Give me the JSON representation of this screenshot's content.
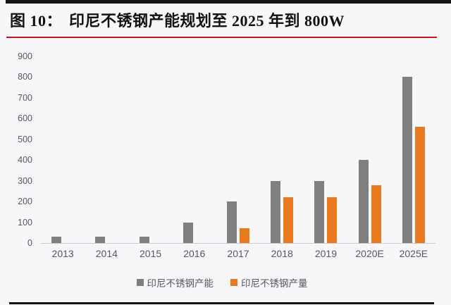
{
  "header": {
    "figure_label": "图 10：",
    "title": "印尼不锈钢产能规划至 2025 年到 800W"
  },
  "colors": {
    "capacity_gray": "#7F7F7F",
    "output_orange": "#E8791E",
    "title_underline_red": "#C4161C",
    "divider_black": "#141414",
    "axis_text": "#57575D",
    "background": "#F7F6F8"
  },
  "chart_data": {
    "type": "bar",
    "title": "印尼不锈钢产能规划至 2025 年到 800W",
    "categories": [
      "2013",
      "2014",
      "2015",
      "2016",
      "2017",
      "2018",
      "2019",
      "2020E",
      "2025E"
    ],
    "series": [
      {
        "name": "印尼不锈钢产能",
        "color": "#7F7F7F",
        "values": [
          30,
          30,
          30,
          100,
          200,
          300,
          300,
          400,
          800
        ]
      },
      {
        "name": "印尼不锈钢产量",
        "color": "#E8791E",
        "values": [
          0,
          0,
          0,
          0,
          70,
          220,
          220,
          280,
          560
        ]
      }
    ],
    "xlabel": "",
    "ylabel": "",
    "ylim": [
      0,
      900
    ],
    "yticks": [
      0,
      100,
      200,
      300,
      400,
      500,
      600,
      700,
      800,
      900
    ],
    "grid": false,
    "legend_position": "bottom"
  }
}
